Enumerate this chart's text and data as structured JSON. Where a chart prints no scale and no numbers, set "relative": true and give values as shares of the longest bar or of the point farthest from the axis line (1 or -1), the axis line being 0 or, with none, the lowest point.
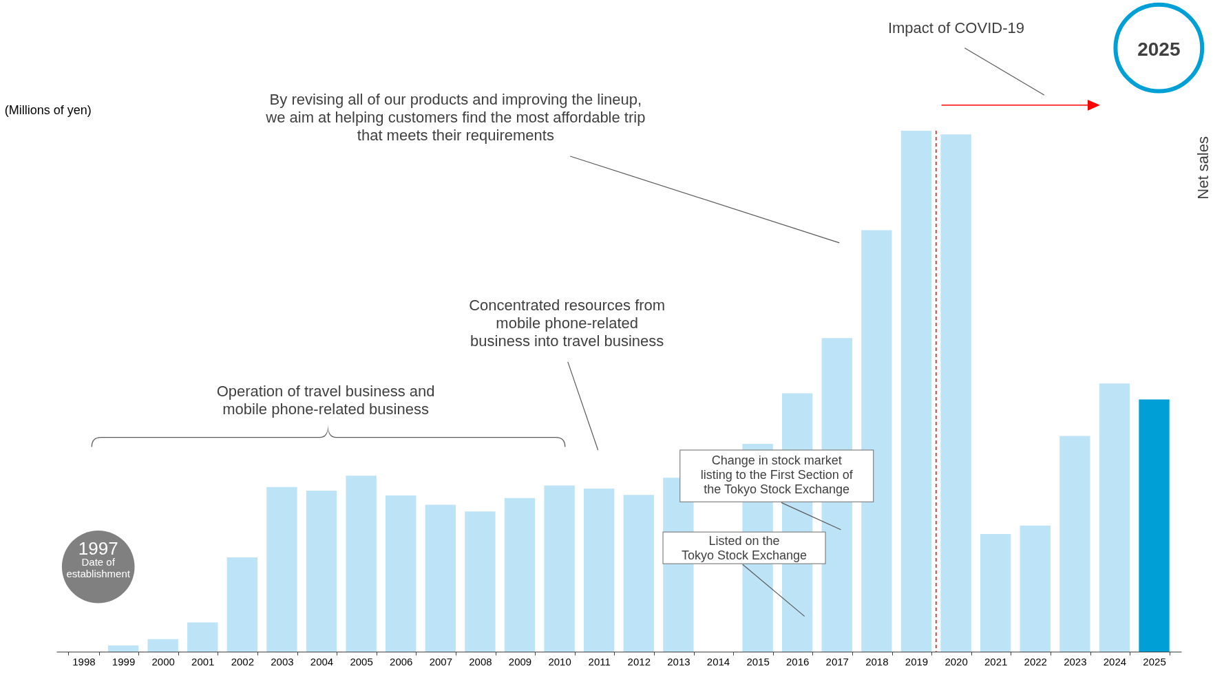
{
  "chart_data": {
    "type": "bar",
    "relative": true,
    "ylabel": "(Millions of yen)",
    "categories": [
      "1998",
      "1999",
      "2000",
      "2001",
      "2002",
      "2003",
      "2004",
      "2005",
      "2006",
      "2007",
      "2008",
      "2009",
      "2010",
      "2011",
      "2012",
      "2013",
      "2014",
      "2015",
      "2016",
      "2017",
      "2018",
      "2019",
      "2020",
      "2021",
      "2022",
      "2023",
      "2024",
      "2025"
    ],
    "values": [
      0,
      0.012,
      0.024,
      0.056,
      0.181,
      0.316,
      0.309,
      0.338,
      0.3,
      0.282,
      0.269,
      0.295,
      0.319,
      0.313,
      0.301,
      0.334,
      null,
      0.399,
      0.496,
      0.602,
      0.809,
      1,
      0.993,
      0.226,
      0.242,
      0.414,
      0.515,
      0.484
    ],
    "colors": [
      "#bde3f7",
      "#bde3f7",
      "#bde3f7",
      "#bde3f7",
      "#bde3f7",
      "#bde3f7",
      "#bde3f7",
      "#bde3f7",
      "#bde3f7",
      "#bde3f7",
      "#bde3f7",
      "#bde3f7",
      "#bde3f7",
      "#bde3f7",
      "#bde3f7",
      "#bde3f7",
      "#bde3f7",
      "#bde3f7",
      "#bde3f7",
      "#bde3f7",
      "#bde3f7",
      "#bde3f7",
      "#bde3f7",
      "#bde3f7",
      "#bde3f7",
      "#bde3f7",
      "#bde3f7",
      "#00a0d6"
    ],
    "ref_lines": [
      {
        "axis": "x",
        "value": "2020",
        "color": "#ff0000",
        "line_style": "dashed"
      }
    ],
    "annotations": [
      "Impact of COVID-19",
      "2025",
      "By revising all of our products and improving the lineup,\nwe aim at helping customers find the most affordable trip\nthat meets their requirements",
      "Concentrated resources from\nmobile phone-related\nbusiness into travel business",
      "Operation of travel business and\nmobile phone-related business",
      "Change in stock market\nlisting to the First Section of\nthe Tokyo Stock Exchange",
      "Listed on the\nTokyo Stock Exchange",
      "1997\nDate of\nestablishment",
      "Net sales"
    ]
  }
}
